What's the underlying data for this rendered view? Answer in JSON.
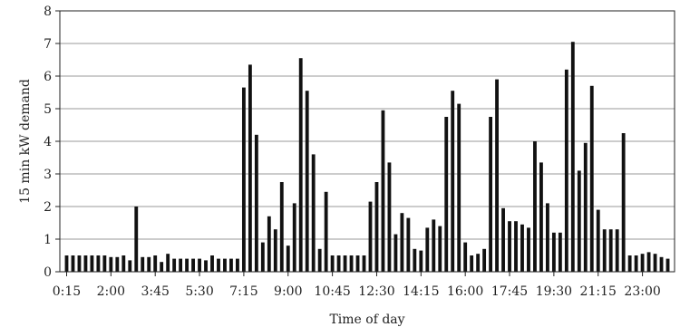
{
  "chart_data": {
    "type": "bar",
    "title": "",
    "xlabel": "Time of day",
    "ylabel": "15 min kW demand",
    "ylim": [
      0,
      8
    ],
    "yticks": [
      "0",
      "1",
      "2",
      "3",
      "4",
      "5",
      "6",
      "7",
      "8"
    ],
    "grid": true,
    "legend": "none",
    "bar_color": "#111111",
    "categories": [
      "0:15",
      "0:30",
      "0:45",
      "1:00",
      "1:15",
      "1:30",
      "1:45",
      "2:00",
      "2:15",
      "2:30",
      "2:45",
      "3:00",
      "3:15",
      "3:30",
      "3:45",
      "4:00",
      "4:15",
      "4:30",
      "4:45",
      "5:00",
      "5:15",
      "5:30",
      "5:45",
      "6:00",
      "6:15",
      "6:30",
      "6:45",
      "7:00",
      "7:15",
      "7:30",
      "7:45",
      "8:00",
      "8:15",
      "8:30",
      "8:45",
      "9:00",
      "9:15",
      "9:30",
      "9:45",
      "10:00",
      "10:15",
      "10:30",
      "10:45",
      "11:00",
      "11:15",
      "11:30",
      "11:45",
      "12:00",
      "12:15",
      "12:30",
      "12:45",
      "13:00",
      "13:15",
      "13:30",
      "13:45",
      "14:00",
      "14:15",
      "14:30",
      "14:45",
      "15:00",
      "15:15",
      "15:30",
      "15:45",
      "16:00",
      "16:15",
      "16:30",
      "16:45",
      "17:00",
      "17:15",
      "17:30",
      "17:45",
      "18:00",
      "18:15",
      "18:30",
      "18:45",
      "19:00",
      "19:15",
      "19:30",
      "19:45",
      "20:00",
      "20:15",
      "20:30",
      "20:45",
      "21:00",
      "21:15",
      "21:30",
      "21:45",
      "22:00",
      "22:15",
      "22:30",
      "22:45",
      "23:00",
      "23:15",
      "23:30",
      "23:45",
      "24:00"
    ],
    "tick_labels": [
      "0:15",
      "2:00",
      "3:45",
      "5:30",
      "7:15",
      "9:00",
      "10:45",
      "12:30",
      "14:15",
      "16:00",
      "17:45",
      "19:30",
      "21:15",
      "23:00"
    ],
    "values": [
      0.5,
      0.5,
      0.5,
      0.5,
      0.5,
      0.5,
      0.5,
      0.45,
      0.45,
      0.5,
      0.35,
      2.0,
      0.45,
      0.45,
      0.5,
      0.3,
      0.55,
      0.4,
      0.4,
      0.4,
      0.4,
      0.4,
      0.35,
      0.5,
      0.4,
      0.4,
      0.4,
      0.4,
      5.65,
      6.35,
      4.2,
      0.9,
      1.7,
      1.3,
      2.75,
      0.8,
      2.1,
      6.55,
      5.55,
      3.6,
      0.7,
      2.45,
      0.5,
      0.5,
      0.5,
      0.5,
      0.5,
      0.5,
      2.15,
      2.75,
      4.95,
      3.35,
      1.15,
      1.8,
      1.65,
      0.7,
      0.65,
      1.35,
      1.6,
      1.4,
      4.75,
      5.55,
      5.15,
      0.9,
      0.5,
      0.55,
      0.7,
      4.75,
      5.9,
      1.95,
      1.55,
      1.55,
      1.45,
      1.35,
      4.0,
      3.35,
      2.1,
      1.2,
      1.2,
      6.2,
      7.05,
      3.1,
      3.95,
      5.7,
      1.9,
      1.3,
      1.3,
      1.3,
      4.25,
      0.5,
      0.5,
      0.55,
      0.6,
      0.55,
      0.45,
      0.4
    ]
  }
}
